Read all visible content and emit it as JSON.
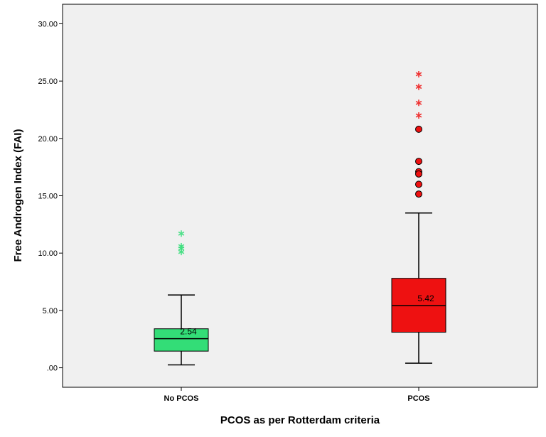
{
  "chart_data": {
    "type": "boxplot",
    "xlabel": "PCOS as per Rotterdam criteria",
    "ylabel": "Free Androgen Index (FAI)",
    "ylim": [
      -1.7,
      31.7
    ],
    "yticks": [
      0,
      5,
      10,
      15,
      20,
      25,
      30
    ],
    "ytick_labels": [
      ".00",
      "5.00",
      "10.00",
      "15.00",
      "20.00",
      "25.00",
      "30.00"
    ],
    "grid": false,
    "groups": [
      {
        "category": "No PCOS",
        "color": "#33dd77",
        "whisker_low": 0.25,
        "q1": 1.45,
        "median": 2.54,
        "q3": 3.4,
        "whisker_high": 6.35,
        "median_label": "2.54",
        "outliers_circle": [],
        "outliers_star": [
          11.7,
          10.6,
          10.4,
          10.1
        ]
      },
      {
        "category": "PCOS",
        "color": "#ee1111",
        "whisker_low": 0.4,
        "q1": 3.1,
        "median": 5.42,
        "q3": 7.8,
        "whisker_high": 13.5,
        "median_label": "5.42",
        "outliers_circle": [
          20.8,
          18.0,
          17.1,
          16.9,
          16.0,
          15.15
        ],
        "outliers_star": [
          25.6,
          24.5,
          23.1,
          22.0
        ]
      }
    ]
  }
}
